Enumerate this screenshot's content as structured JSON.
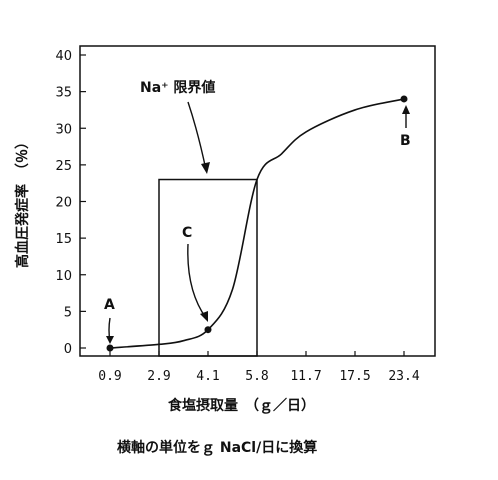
{
  "chart_data": {
    "type": "line",
    "ylabel": "高血圧発症率　（％）",
    "xlabel": "食塩摂取量　（ｇ／日）",
    "caption": "横軸の単位をｇ NaCl/日に換算",
    "y_ticks": [
      "0",
      "5",
      "10",
      "15",
      "20",
      "25",
      "30",
      "35",
      "40"
    ],
    "ylim": [
      0,
      40
    ],
    "x_ticks": [
      "0.9",
      "2.9",
      "4.1",
      "5.8",
      "11.7",
      "17.5",
      "23.4"
    ],
    "x_scale": "categorical (evenly spaced ticks)",
    "grid": false,
    "series": [
      {
        "x_position_index": [
          0,
          1,
          1.5,
          2,
          2.5,
          3,
          3.5,
          4,
          5,
          6
        ],
        "values": [
          0,
          0.5,
          1.0,
          2.5,
          8.0,
          23,
          26.5,
          29.5,
          32.5,
          34
        ]
      }
    ],
    "points": [
      {
        "label": "A",
        "x": "0.9",
        "y": 0
      },
      {
        "label": "C",
        "x": "4.1",
        "y": 2.5
      },
      {
        "label": "B",
        "x": "23.4",
        "y": 34
      }
    ],
    "annotations": {
      "threshold_label": "Na⁺ 限界値",
      "threshold_box": {
        "x_from": "2.9",
        "x_to": "5.8",
        "y_top": 23
      }
    }
  }
}
